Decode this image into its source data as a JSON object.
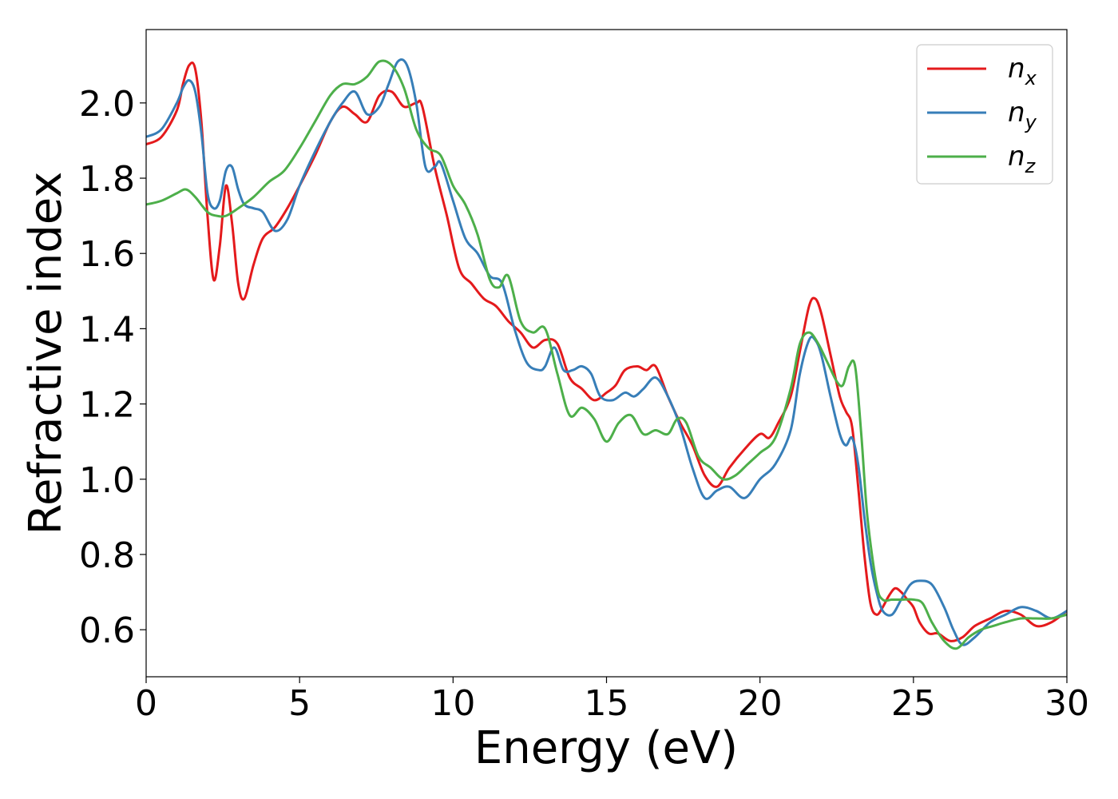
{
  "chart_data": {
    "type": "line",
    "title": "",
    "xlabel": "Energy (eV)",
    "ylabel": "Refractive index",
    "xlim": [
      0,
      30
    ],
    "ylim": [
      0.475,
      2.195
    ],
    "xticks": [
      0,
      5,
      10,
      15,
      20,
      25,
      30
    ],
    "xtick_labels": [
      "0",
      "5",
      "10",
      "15",
      "20",
      "25",
      "30"
    ],
    "yticks": [
      0.6,
      0.8,
      1.0,
      1.2,
      1.4,
      1.6,
      1.8,
      2.0
    ],
    "ytick_labels": [
      "0.6",
      "0.8",
      "1.0",
      "1.2",
      "1.4",
      "1.6",
      "1.8",
      "2.0"
    ],
    "grid": false,
    "legend_position": "top-right",
    "series": [
      {
        "name": "n_x",
        "label_base": "n",
        "label_sub": "x",
        "color": "#e41a1c",
        "x": [
          0,
          0.5,
          1.0,
          1.2,
          1.4,
          1.6,
          1.8,
          2.0,
          2.2,
          2.4,
          2.6,
          2.8,
          3.0,
          3.2,
          3.5,
          3.8,
          4.2,
          4.6,
          5.0,
          5.5,
          6.0,
          6.4,
          6.8,
          7.2,
          7.6,
          8.0,
          8.4,
          8.8,
          9.0,
          9.4,
          9.8,
          10.2,
          10.6,
          11.0,
          11.4,
          11.8,
          12.2,
          12.6,
          13.0,
          13.4,
          13.8,
          14.2,
          14.6,
          15.0,
          15.3,
          15.6,
          16.0,
          16.3,
          16.6,
          17.0,
          17.4,
          17.8,
          18.2,
          18.6,
          19.0,
          19.5,
          20.0,
          20.3,
          20.6,
          21.0,
          21.3,
          21.6,
          21.8,
          22.0,
          22.3,
          22.6,
          22.8,
          23.0,
          23.2,
          23.4,
          23.6,
          23.8,
          24.0,
          24.2,
          24.4,
          24.6,
          24.8,
          25.0,
          25.2,
          25.5,
          25.8,
          26.2,
          26.6,
          27.0,
          27.5,
          28.0,
          28.5,
          29.0,
          29.5,
          30.0
        ],
        "y": [
          1.89,
          1.91,
          1.98,
          2.05,
          2.1,
          2.09,
          1.95,
          1.7,
          1.53,
          1.62,
          1.78,
          1.68,
          1.52,
          1.48,
          1.57,
          1.64,
          1.67,
          1.72,
          1.78,
          1.86,
          1.95,
          1.99,
          1.97,
          1.95,
          2.02,
          2.03,
          1.99,
          2.0,
          1.99,
          1.83,
          1.7,
          1.56,
          1.52,
          1.48,
          1.46,
          1.42,
          1.39,
          1.35,
          1.37,
          1.36,
          1.27,
          1.24,
          1.21,
          1.23,
          1.25,
          1.29,
          1.3,
          1.29,
          1.3,
          1.22,
          1.15,
          1.09,
          1.01,
          0.98,
          1.03,
          1.08,
          1.12,
          1.11,
          1.15,
          1.22,
          1.34,
          1.46,
          1.48,
          1.44,
          1.33,
          1.22,
          1.18,
          1.14,
          0.98,
          0.8,
          0.67,
          0.64,
          0.66,
          0.69,
          0.71,
          0.7,
          0.68,
          0.66,
          0.62,
          0.59,
          0.59,
          0.57,
          0.58,
          0.61,
          0.63,
          0.65,
          0.64,
          0.61,
          0.62,
          0.65
        ]
      },
      {
        "name": "n_y",
        "label_base": "n",
        "label_sub": "y",
        "color": "#377eb8",
        "x": [
          0,
          0.5,
          1.0,
          1.2,
          1.4,
          1.6,
          1.8,
          2.0,
          2.2,
          2.4,
          2.6,
          2.8,
          3.0,
          3.2,
          3.5,
          3.8,
          4.2,
          4.6,
          5.0,
          5.5,
          6.0,
          6.4,
          6.8,
          7.2,
          7.6,
          7.9,
          8.2,
          8.5,
          8.8,
          9.1,
          9.4,
          9.6,
          10.0,
          10.4,
          10.8,
          11.2,
          11.6,
          12.0,
          12.4,
          12.8,
          13.0,
          13.3,
          13.6,
          13.9,
          14.2,
          14.5,
          14.8,
          15.2,
          15.6,
          15.9,
          16.2,
          16.6,
          17.0,
          17.4,
          17.8,
          18.2,
          18.6,
          19.0,
          19.5,
          20.0,
          20.5,
          21.0,
          21.3,
          21.6,
          21.8,
          22.0,
          22.3,
          22.6,
          22.8,
          23.0,
          23.2,
          23.4,
          23.6,
          23.8,
          24.0,
          24.3,
          24.6,
          24.9,
          25.2,
          25.6,
          26.0,
          26.3,
          26.6,
          27.0,
          27.5,
          28.0,
          28.5,
          29.0,
          29.5,
          30.0
        ],
        "y": [
          1.91,
          1.93,
          2.0,
          2.04,
          2.06,
          2.03,
          1.92,
          1.76,
          1.72,
          1.74,
          1.82,
          1.83,
          1.77,
          1.73,
          1.72,
          1.71,
          1.66,
          1.69,
          1.78,
          1.87,
          1.95,
          2.0,
          2.03,
          1.97,
          1.99,
          2.05,
          2.11,
          2.1,
          2.0,
          1.83,
          1.83,
          1.84,
          1.74,
          1.64,
          1.6,
          1.54,
          1.52,
          1.4,
          1.31,
          1.29,
          1.3,
          1.35,
          1.29,
          1.29,
          1.3,
          1.28,
          1.22,
          1.21,
          1.23,
          1.22,
          1.24,
          1.27,
          1.22,
          1.14,
          1.03,
          0.95,
          0.97,
          0.98,
          0.95,
          1.0,
          1.04,
          1.13,
          1.28,
          1.37,
          1.37,
          1.33,
          1.22,
          1.12,
          1.09,
          1.11,
          1.04,
          0.9,
          0.78,
          0.7,
          0.65,
          0.64,
          0.68,
          0.72,
          0.73,
          0.72,
          0.66,
          0.6,
          0.56,
          0.58,
          0.62,
          0.64,
          0.66,
          0.65,
          0.63,
          0.65
        ]
      },
      {
        "name": "n_z",
        "label_base": "n",
        "label_sub": "z",
        "color": "#4daf4a",
        "x": [
          0,
          0.5,
          1.0,
          1.3,
          1.6,
          2.0,
          2.3,
          2.6,
          3.0,
          3.5,
          4.0,
          4.5,
          5.0,
          5.5,
          6.0,
          6.4,
          6.8,
          7.2,
          7.6,
          8.0,
          8.4,
          8.8,
          9.2,
          9.6,
          10.0,
          10.4,
          10.8,
          11.2,
          11.5,
          11.8,
          12.2,
          12.6,
          13.0,
          13.4,
          13.8,
          14.2,
          14.6,
          15.0,
          15.4,
          15.8,
          16.2,
          16.6,
          17.0,
          17.3,
          17.6,
          18.0,
          18.4,
          18.8,
          19.2,
          19.6,
          20.0,
          20.5,
          21.0,
          21.3,
          21.6,
          21.9,
          22.2,
          22.5,
          22.7,
          22.9,
          23.1,
          23.3,
          23.5,
          23.8,
          24.0,
          24.3,
          24.6,
          25.0,
          25.3,
          25.6,
          26.0,
          26.4,
          26.8,
          27.2,
          27.6,
          28.0,
          28.5,
          29.0,
          29.5,
          30.0
        ],
        "y": [
          1.73,
          1.74,
          1.76,
          1.77,
          1.75,
          1.71,
          1.7,
          1.7,
          1.72,
          1.75,
          1.79,
          1.82,
          1.88,
          1.95,
          2.02,
          2.05,
          2.05,
          2.07,
          2.11,
          2.1,
          2.04,
          1.93,
          1.88,
          1.86,
          1.78,
          1.73,
          1.65,
          1.53,
          1.51,
          1.54,
          1.42,
          1.39,
          1.4,
          1.28,
          1.17,
          1.19,
          1.16,
          1.1,
          1.15,
          1.17,
          1.12,
          1.13,
          1.12,
          1.16,
          1.15,
          1.06,
          1.03,
          1.0,
          1.01,
          1.04,
          1.07,
          1.11,
          1.24,
          1.36,
          1.39,
          1.36,
          1.31,
          1.26,
          1.25,
          1.3,
          1.3,
          1.12,
          0.9,
          0.72,
          0.68,
          0.68,
          0.68,
          0.68,
          0.67,
          0.62,
          0.57,
          0.55,
          0.58,
          0.6,
          0.61,
          0.62,
          0.63,
          0.63,
          0.63,
          0.64
        ]
      }
    ]
  }
}
